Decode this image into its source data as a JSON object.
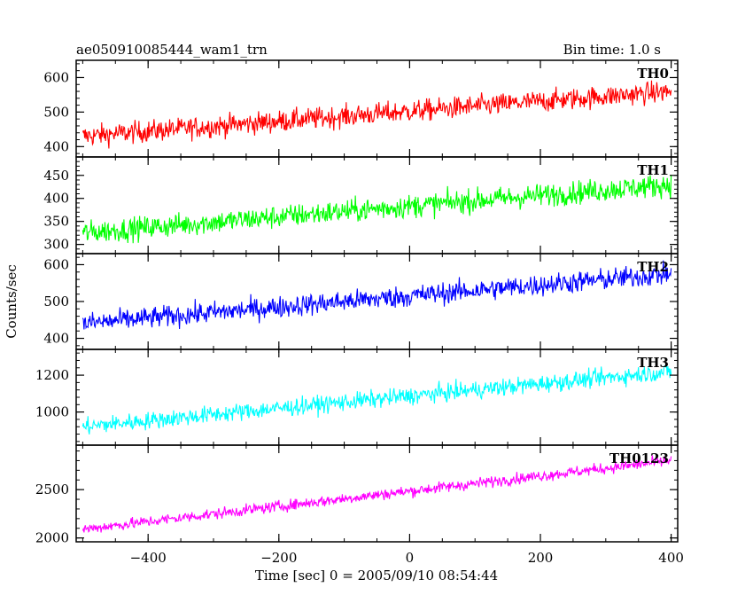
{
  "header": {
    "title": "ae050910085444_wam1_trn",
    "bin_time": "Bin time: 1.0 s"
  },
  "chart_data": {
    "type": "line",
    "title": "ae050910085444_wam1_trn",
    "xlabel": "Time [sec] 0 = 2005/09/10 08:54:44",
    "ylabel": "Counts/sec",
    "xlim": [
      -510,
      410
    ],
    "x_data_range": [
      -500,
      400
    ],
    "x_ticks": [
      -400,
      -200,
      0,
      200,
      400
    ],
    "x_tick_labels": [
      "−400",
      "−200",
      "0",
      "200",
      "400"
    ],
    "grid": false,
    "legend": "panel labels top-right",
    "panels": [
      {
        "name": "TH0",
        "color": "#ff0000",
        "ylim": [
          370,
          650
        ],
        "y_ticks": [
          400,
          500,
          600
        ],
        "trend_start": 430,
        "trend_end": 560,
        "noise": 30
      },
      {
        "name": "TH1",
        "color": "#00ff00",
        "ylim": [
          280,
          490
        ],
        "y_ticks": [
          300,
          350,
          400,
          450
        ],
        "trend_start": 325,
        "trend_end": 430,
        "noise": 24
      },
      {
        "name": "TH2",
        "color": "#0000ff",
        "ylim": [
          370,
          630
        ],
        "y_ticks": [
          400,
          500,
          600
        ],
        "trend_start": 440,
        "trend_end": 575,
        "noise": 28
      },
      {
        "name": "TH3",
        "color": "#00ffff",
        "ylim": [
          820,
          1340
        ],
        "y_ticks": [
          1000,
          1200
        ],
        "trend_start": 920,
        "trend_end": 1220,
        "noise": 45
      },
      {
        "name": "TH0123",
        "color": "#ff00ff",
        "ylim": [
          1960,
          2960
        ],
        "y_ticks": [
          2000,
          2500
        ],
        "trend_start": 2090,
        "trend_end": 2800,
        "noise": 55
      }
    ]
  }
}
